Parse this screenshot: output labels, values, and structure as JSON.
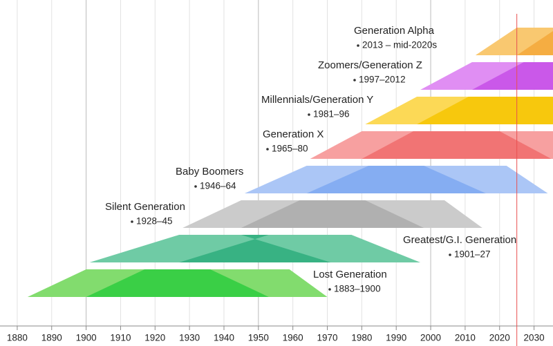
{
  "chart_data": {
    "type": "timeline",
    "xlim": [
      1875,
      2035.5
    ],
    "xticks": [
      1880,
      1890,
      1900,
      1910,
      1920,
      1930,
      1940,
      1950,
      1960,
      1970,
      1980,
      1990,
      2000,
      2010,
      2020,
      2030
    ],
    "now_line": 2025,
    "generations": [
      {
        "name": "Lost Generation",
        "start": 1883,
        "end": 1900,
        "range_label": "1883–1900",
        "color": "#82dc6e",
        "dark_color": "#2ecc40"
      },
      {
        "name": "Greatest/G.I. Generation",
        "start": 1901,
        "end": 1927,
        "range_label": "1901–27",
        "color": "#6fcba5",
        "dark_color": "#2fae7c"
      },
      {
        "name": "Silent Generation",
        "start": 1928,
        "end": 1945,
        "range_label": "1928–45",
        "color": "#cbcbcb",
        "dark_color": "#ababab"
      },
      {
        "name": "Baby Boomers",
        "start": 1946,
        "end": 1964,
        "range_label": "1946–64",
        "color": "#abc6f6",
        "dark_color": "#7ea8f1"
      },
      {
        "name": "Generation X",
        "start": 1965,
        "end": 1980,
        "range_label": "1965–80",
        "color": "#f7a0a0",
        "dark_color": "#f06c6c"
      },
      {
        "name": "Millennials/Generation Y",
        "start": 1981,
        "end": 1996,
        "range_label": "1981–96",
        "color": "#fcd956",
        "dark_color": "#f6c400"
      },
      {
        "name": "Zoomers/Generation Z",
        "start": 1997,
        "end": 2012,
        "range_label": "1997–2012",
        "color": "#e08ef3",
        "dark_color": "#c64fe6"
      },
      {
        "name": "Generation Alpha",
        "start": 2013,
        "end": 2025,
        "range_label": "2013 – mid-2020s",
        "color": "#f9c870",
        "dark_color": "#f5a83a"
      }
    ]
  }
}
